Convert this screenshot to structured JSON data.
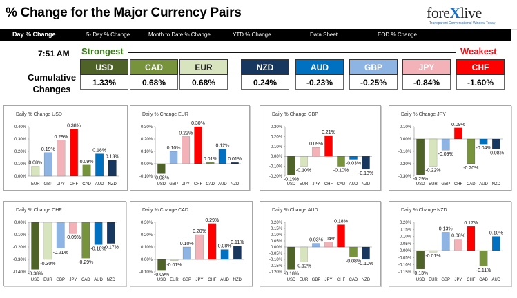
{
  "header": {
    "title": "% Change for the Major Currency Pairs"
  },
  "logo": {
    "text_a": "fore",
    "text_x": "X",
    "text_b": "live",
    "tagline": "Transparent Conversational Window Today"
  },
  "tabs": [
    {
      "label": "Day % Change",
      "active": true
    },
    {
      "label": "5- Day % Change",
      "active": false
    },
    {
      "label": "Month to Date % Change",
      "active": false
    },
    {
      "label": "YTD % Change",
      "active": false
    },
    {
      "label": "Data Sheet",
      "active": false
    },
    {
      "label": "EOD % Change",
      "active": false
    }
  ],
  "time": "7:51 AM",
  "strength": {
    "strongest": "Strongest",
    "weakest": "Weakest"
  },
  "cumulative": {
    "label_line1": "Cumulative",
    "label_line2": "Changes",
    "currencies": [
      {
        "code": "USD",
        "value": "1.33%",
        "color": "#4f6228"
      },
      {
        "code": "CAD",
        "value": "0.68%",
        "color": "#77933c"
      },
      {
        "code": "EUR",
        "value": "0.68%",
        "color": "#d7e4bd",
        "text_color": "#222222"
      },
      {
        "code": "NZD",
        "value": "0.24%",
        "color": "#17375e"
      },
      {
        "code": "AUD",
        "value": "-0.23%",
        "color": "#0070c0"
      },
      {
        "code": "GBP",
        "value": "-0.25%",
        "color": "#8db4e2"
      },
      {
        "code": "JPY",
        "value": "-0.84%",
        "color": "#f2b2b8"
      },
      {
        "code": "CHF",
        "value": "-1.60%",
        "color": "#ff0000"
      }
    ]
  },
  "colors": {
    "USD": "#4f6228",
    "CAD": "#77933c",
    "EUR": "#d7e4bd",
    "NZD": "#17375e",
    "AUD": "#0070c0",
    "GBP": "#8db4e2",
    "JPY": "#f2b2b8",
    "CHF": "#ff0000"
  },
  "chart_data": [
    {
      "type": "bar",
      "title": "Daily % Change USD",
      "base": "USD",
      "categories": [
        "EUR",
        "GBP",
        "JPY",
        "CHF",
        "CAD",
        "AUD",
        "NZD"
      ],
      "values": [
        0.08,
        0.19,
        0.29,
        0.38,
        0.09,
        0.18,
        0.13
      ],
      "labels": [
        "0.08%",
        "0.19%",
        "0.29%",
        "0.38%",
        "0.09%",
        "0.18%",
        "0.13%"
      ],
      "yticks": [
        "0.40%",
        "0.30%",
        "0.20%",
        "0.10%",
        "0.00%"
      ],
      "ylim": [
        0,
        0.4
      ]
    },
    {
      "type": "bar",
      "title": "Daily % Change EUR",
      "base": "EUR",
      "categories": [
        "USD",
        "GBP",
        "JPY",
        "CHF",
        "CAD",
        "AUD",
        "NZD"
      ],
      "values": [
        -0.08,
        0.1,
        0.22,
        0.3,
        0.01,
        0.12,
        0.01
      ],
      "labels": [
        "-0.08%",
        "0.10%",
        "0.22%",
        "0.30%",
        "0.01%",
        "0.12%",
        "0.01%"
      ],
      "yticks": [
        "0.30%",
        "0.20%",
        "0.10%",
        "0.00%",
        "-0.10%"
      ],
      "ylim": [
        -0.1,
        0.3
      ]
    },
    {
      "type": "bar",
      "title": "Daily % Change GBP",
      "base": "GBP",
      "categories": [
        "USD",
        "EUR",
        "JPY",
        "CHF",
        "CAD",
        "AUD",
        "NZD"
      ],
      "values": [
        -0.19,
        -0.1,
        0.09,
        0.21,
        -0.1,
        -0.03,
        -0.13
      ],
      "labels": [
        "-0.19%",
        "-0.10%",
        "0.09%",
        "0.21%",
        "-0.10%",
        "-0.03%",
        "-0.13%"
      ],
      "yticks": [
        "0.30%",
        "0.20%",
        "0.10%",
        "0.00%",
        "-0.10%",
        "-0.20%"
      ],
      "ylim": [
        -0.2,
        0.3
      ]
    },
    {
      "type": "bar",
      "title": "Daily % Change JPY",
      "base": "JPY",
      "categories": [
        "USD",
        "EUR",
        "GBP",
        "CHF",
        "CAD",
        "AUD",
        "NZD"
      ],
      "values": [
        -0.29,
        -0.22,
        -0.09,
        0.09,
        -0.2,
        -0.04,
        -0.08
      ],
      "labels": [
        "-0.29%",
        "-0.22%",
        "-0.09%",
        "0.09%",
        "-0.20%",
        "-0.04%",
        "-0.08%"
      ],
      "yticks": [
        "0.10%",
        "0.00%",
        "-0.10%",
        "-0.20%",
        "-0.30%"
      ],
      "ylim": [
        -0.3,
        0.1
      ]
    },
    {
      "type": "bar",
      "title": "Daily % Change CHF",
      "base": "CHF",
      "categories": [
        "USD",
        "EUR",
        "GBP",
        "JPY",
        "CAD",
        "AUD",
        "NZD"
      ],
      "values": [
        -0.38,
        -0.3,
        -0.21,
        -0.09,
        -0.29,
        -0.18,
        -0.17
      ],
      "labels": [
        "-0.38%",
        "-0.30%",
        "-0.21%",
        "-0.09%",
        "-0.29%",
        "-0.18%",
        "-0.17%"
      ],
      "yticks": [
        "0.00%",
        "-0.10%",
        "-0.20%",
        "-0.30%",
        "-0.40%"
      ],
      "ylim": [
        -0.4,
        0
      ]
    },
    {
      "type": "bar",
      "title": "Daily % Change CAD",
      "base": "CAD",
      "categories": [
        "USD",
        "EUR",
        "GBP",
        "JPY",
        "CHF",
        "AUD",
        "NZD"
      ],
      "values": [
        -0.09,
        -0.01,
        0.1,
        0.2,
        0.29,
        0.08,
        0.11
      ],
      "labels": [
        "-0.09%",
        "-0.01%",
        "0.10%",
        "0.20%",
        "0.29%",
        "0.08%",
        "0.11%"
      ],
      "yticks": [
        "0.30%",
        "0.20%",
        "0.10%",
        "0.00%",
        "-0.10%"
      ],
      "ylim": [
        -0.1,
        0.3
      ]
    },
    {
      "type": "bar",
      "title": "Daily % Change AUD",
      "base": "AUD",
      "categories": [
        "USD",
        "EUR",
        "GBP",
        "JPY",
        "CHF",
        "CAD",
        "NZD"
      ],
      "values": [
        -0.18,
        -0.12,
        0.03,
        0.04,
        0.18,
        -0.08,
        -0.1
      ],
      "labels": [
        "-0.18%",
        "-0.12%",
        "0.03%",
        "0.04%",
        "0.18%",
        "-0.08%",
        "-0.10%"
      ],
      "yticks": [
        "0.20%",
        "0.15%",
        "0.10%",
        "0.05%",
        "0.00%",
        "-0.05%",
        "-0.10%",
        "-0.15%",
        "-0.20%"
      ],
      "ylim": [
        -0.2,
        0.2
      ]
    },
    {
      "type": "bar",
      "title": "Daily % Change NZD",
      "base": "NZD",
      "categories": [
        "USD",
        "EUR",
        "GBP",
        "JPY",
        "CHF",
        "CAD",
        "AUD"
      ],
      "values": [
        -0.13,
        -0.01,
        0.13,
        0.08,
        0.17,
        -0.11,
        0.1
      ],
      "labels": [
        "-0.13%",
        "-0.01%",
        "0.13%",
        "0.08%",
        "0.17%",
        "-0.11%",
        "0.10%"
      ],
      "yticks": [
        "0.20%",
        "0.15%",
        "0.10%",
        "0.05%",
        "0.00%",
        "-0.05%",
        "-0.10%",
        "-0.15%"
      ],
      "ylim": [
        -0.15,
        0.2
      ]
    }
  ]
}
